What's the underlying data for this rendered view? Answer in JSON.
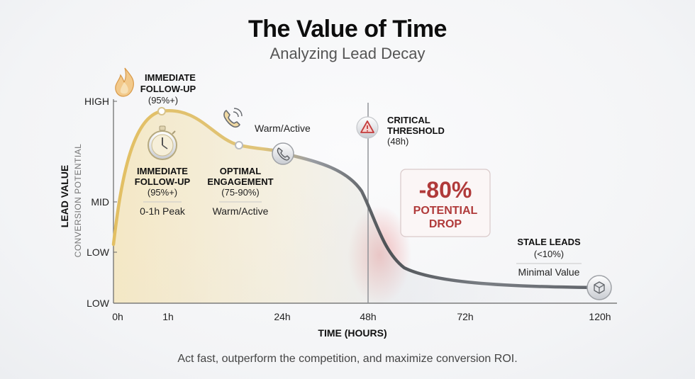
{
  "title": "The Value of Time",
  "subtitle": "Analyzing Lead Decay",
  "footer": "Act fast, outperform the competition, and maximize conversion ROI.",
  "colors": {
    "early": "#e8c978",
    "curve": "#6e7276",
    "drop": "#c94b4b",
    "drop_text": "#b03a3a"
  },
  "chart_data": {
    "type": "line",
    "xlabel": "TIME (HOURS)",
    "ylabel": "LEAD VALUE",
    "ylabel_sub": "CONVERSION POTENTIAL",
    "x_ticks": [
      "0h",
      "1h",
      "24h",
      "48h",
      "72h",
      "120h"
    ],
    "y_ticks": [
      "HIGH",
      "MID",
      "LOW",
      "LOW"
    ],
    "threshold_x": "48h",
    "annotations": {
      "peak_top": {
        "line1": "IMMEDIATE",
        "line2": "FOLLOW-UP",
        "line3": "(95%+)",
        "icon": "flame-icon"
      },
      "peak_mid": {
        "line1": "IMMEDIATE",
        "line2": "FOLLOW-UP",
        "line3": "(95%+)",
        "tag": "0-1h Peak",
        "icon": "stopwatch-icon"
      },
      "warm_top": {
        "label": "Warm/Active",
        "icon": "phone-ringing-icon"
      },
      "optimal": {
        "line1": "OPTIMAL",
        "line2": "ENGAGEMENT",
        "line3": "(75-90%)",
        "tag": "Warm/Active"
      },
      "critical": {
        "line1": "CRITICAL",
        "line2": "THRESHOLD",
        "line3": "(48h)",
        "icon": "warning-icon"
      },
      "drop": {
        "value": "-80%",
        "line1": "POTENTIAL",
        "line2": "DROP"
      },
      "stale": {
        "line1": "STALE LEADS",
        "line2": "(<10%)",
        "tag": "Minimal Value",
        "icon": "cube-icon"
      }
    }
  }
}
